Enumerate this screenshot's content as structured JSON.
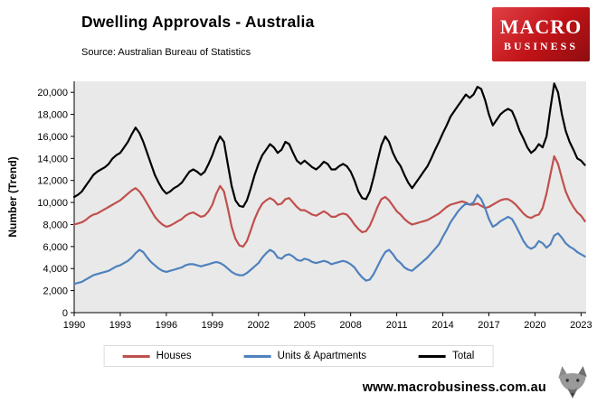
{
  "header": {
    "title": "Dwelling Approvals - Australia",
    "source": "Source: Australian Bureau of Statistics"
  },
  "logo": {
    "line1": "MACRO",
    "line2": "BUSINESS",
    "brand_color": "#C01318",
    "text_color": "#FFFFFF"
  },
  "footer": {
    "url": "www.macrobusiness.com.au",
    "icon": "wolf-logo"
  },
  "chart_data": {
    "type": "line",
    "title": "Dwelling Approvals - Australia",
    "subtitle": "Source: Australian Bureau of Statistics",
    "xlabel": "",
    "ylabel": "Number (Trend)",
    "ylim": [
      0,
      21000
    ],
    "ytick_step": 2000,
    "ytick_max": 20000,
    "xlim": [
      1990,
      2023.33
    ],
    "xticks": [
      1990,
      1993,
      1996,
      1999,
      2002,
      2005,
      2008,
      2011,
      2014,
      2017,
      2020,
      2023
    ],
    "grid": false,
    "plot_background": "#E9E9E9",
    "legend_position": "bottom",
    "x": [
      1990,
      1990.25,
      1990.5,
      1990.75,
      1991,
      1991.25,
      1991.5,
      1991.75,
      1992,
      1992.25,
      1992.5,
      1992.75,
      1993,
      1993.25,
      1993.5,
      1993.75,
      1994,
      1994.25,
      1994.5,
      1994.75,
      1995,
      1995.25,
      1995.5,
      1995.75,
      1996,
      1996.25,
      1996.5,
      1996.75,
      1997,
      1997.25,
      1997.5,
      1997.75,
      1998,
      1998.25,
      1998.5,
      1998.75,
      1999,
      1999.25,
      1999.5,
      1999.75,
      2000,
      2000.25,
      2000.5,
      2000.75,
      2001,
      2001.25,
      2001.5,
      2001.75,
      2002,
      2002.25,
      2002.5,
      2002.75,
      2003,
      2003.25,
      2003.5,
      2003.75,
      2004,
      2004.25,
      2004.5,
      2004.75,
      2005,
      2005.25,
      2005.5,
      2005.75,
      2006,
      2006.25,
      2006.5,
      2006.75,
      2007,
      2007.25,
      2007.5,
      2007.75,
      2008,
      2008.25,
      2008.5,
      2008.75,
      2009,
      2009.25,
      2009.5,
      2009.75,
      2010,
      2010.25,
      2010.5,
      2010.75,
      2011,
      2011.25,
      2011.5,
      2011.75,
      2012,
      2012.25,
      2012.5,
      2012.75,
      2013,
      2013.25,
      2013.5,
      2013.75,
      2014,
      2014.25,
      2014.5,
      2014.75,
      2015,
      2015.25,
      2015.5,
      2015.75,
      2016,
      2016.25,
      2016.5,
      2016.75,
      2017,
      2017.25,
      2017.5,
      2017.75,
      2018,
      2018.25,
      2018.5,
      2018.75,
      2019,
      2019.25,
      2019.5,
      2019.75,
      2020,
      2020.25,
      2020.5,
      2020.75,
      2021,
      2021.25,
      2021.5,
      2021.75,
      2022,
      2022.25,
      2022.5,
      2022.75,
      2023,
      2023.25
    ],
    "series": [
      {
        "name": "Houses",
        "color": "#C0504D",
        "values": [
          8000,
          8100,
          8200,
          8400,
          8700,
          8900,
          9000,
          9200,
          9400,
          9600,
          9800,
          10000,
          10200,
          10500,
          10800,
          11100,
          11300,
          11000,
          10500,
          9900,
          9300,
          8700,
          8300,
          8000,
          7800,
          7900,
          8100,
          8300,
          8500,
          8800,
          9000,
          9100,
          8900,
          8700,
          8800,
          9200,
          9800,
          10800,
          11500,
          11000,
          9500,
          7800,
          6700,
          6100,
          6000,
          6500,
          7500,
          8500,
          9300,
          9900,
          10200,
          10400,
          10200,
          9800,
          9900,
          10300,
          10400,
          10000,
          9600,
          9300,
          9300,
          9100,
          8900,
          8800,
          9000,
          9200,
          9000,
          8700,
          8700,
          8900,
          9000,
          8900,
          8500,
          8000,
          7600,
          7300,
          7400,
          7900,
          8700,
          9600,
          10300,
          10500,
          10200,
          9700,
          9200,
          8900,
          8500,
          8200,
          8000,
          8100,
          8200,
          8300,
          8400,
          8600,
          8800,
          9000,
          9300,
          9600,
          9800,
          9900,
          10000,
          10100,
          10000,
          9800,
          9800,
          9900,
          9700,
          9500,
          9600,
          9800,
          10000,
          10200,
          10300,
          10300,
          10100,
          9800,
          9400,
          9000,
          8700,
          8600,
          8800,
          8900,
          9500,
          10800,
          12500,
          14200,
          13500,
          12200,
          11000,
          10200,
          9600,
          9100,
          8800,
          8300
        ]
      },
      {
        "name": "Units & Apartments",
        "color": "#4F81BD",
        "values": [
          2600,
          2700,
          2800,
          3000,
          3200,
          3400,
          3500,
          3600,
          3700,
          3800,
          4000,
          4200,
          4300,
          4500,
          4700,
          5000,
          5400,
          5700,
          5500,
          5000,
          4600,
          4300,
          4000,
          3800,
          3700,
          3800,
          3900,
          4000,
          4100,
          4300,
          4400,
          4400,
          4300,
          4200,
          4300,
          4400,
          4500,
          4600,
          4500,
          4300,
          4000,
          3700,
          3500,
          3400,
          3400,
          3600,
          3900,
          4200,
          4500,
          5000,
          5400,
          5700,
          5500,
          5000,
          4900,
          5200,
          5300,
          5100,
          4800,
          4700,
          4900,
          4800,
          4600,
          4500,
          4600,
          4700,
          4600,
          4400,
          4500,
          4600,
          4700,
          4600,
          4400,
          4100,
          3600,
          3200,
          2900,
          3000,
          3500,
          4200,
          4900,
          5500,
          5700,
          5300,
          4800,
          4500,
          4100,
          3900,
          3800,
          4100,
          4400,
          4700,
          5000,
          5400,
          5800,
          6200,
          6900,
          7500,
          8200,
          8700,
          9200,
          9600,
          9900,
          9800,
          10000,
          10700,
          10300,
          9500,
          8500,
          7800,
          8000,
          8300,
          8500,
          8700,
          8500,
          7900,
          7200,
          6500,
          6000,
          5800,
          6000,
          6500,
          6300,
          5900,
          6200,
          7000,
          7200,
          6800,
          6300,
          6000,
          5800,
          5500,
          5300,
          5100
        ]
      },
      {
        "name": "Total",
        "color": "#000000",
        "values": [
          10500,
          10700,
          11000,
          11500,
          12000,
          12500,
          12800,
          13000,
          13200,
          13500,
          14000,
          14300,
          14500,
          15000,
          15500,
          16200,
          16800,
          16300,
          15500,
          14500,
          13500,
          12500,
          11800,
          11200,
          10800,
          11000,
          11300,
          11500,
          11800,
          12300,
          12800,
          13000,
          12800,
          12500,
          12800,
          13500,
          14300,
          15300,
          16000,
          15500,
          13500,
          11500,
          10200,
          9700,
          9600,
          10200,
          11300,
          12500,
          13500,
          14300,
          14800,
          15300,
          15000,
          14500,
          14800,
          15500,
          15300,
          14500,
          13800,
          13500,
          13800,
          13500,
          13200,
          13000,
          13300,
          13700,
          13500,
          13000,
          13000,
          13300,
          13500,
          13300,
          12800,
          12000,
          11000,
          10400,
          10300,
          11000,
          12300,
          13800,
          15200,
          16000,
          15500,
          14500,
          13800,
          13300,
          12500,
          11800,
          11300,
          11800,
          12300,
          12800,
          13300,
          14000,
          14800,
          15500,
          16300,
          17000,
          17800,
          18300,
          18800,
          19300,
          19800,
          19500,
          19800,
          20500,
          20300,
          19300,
          18000,
          17000,
          17500,
          18000,
          18300,
          18500,
          18300,
          17500,
          16500,
          15800,
          15000,
          14500,
          14800,
          15300,
          15000,
          16000,
          18500,
          20800,
          20000,
          18000,
          16500,
          15500,
          14800,
          14000,
          13800,
          13400
        ]
      }
    ]
  }
}
